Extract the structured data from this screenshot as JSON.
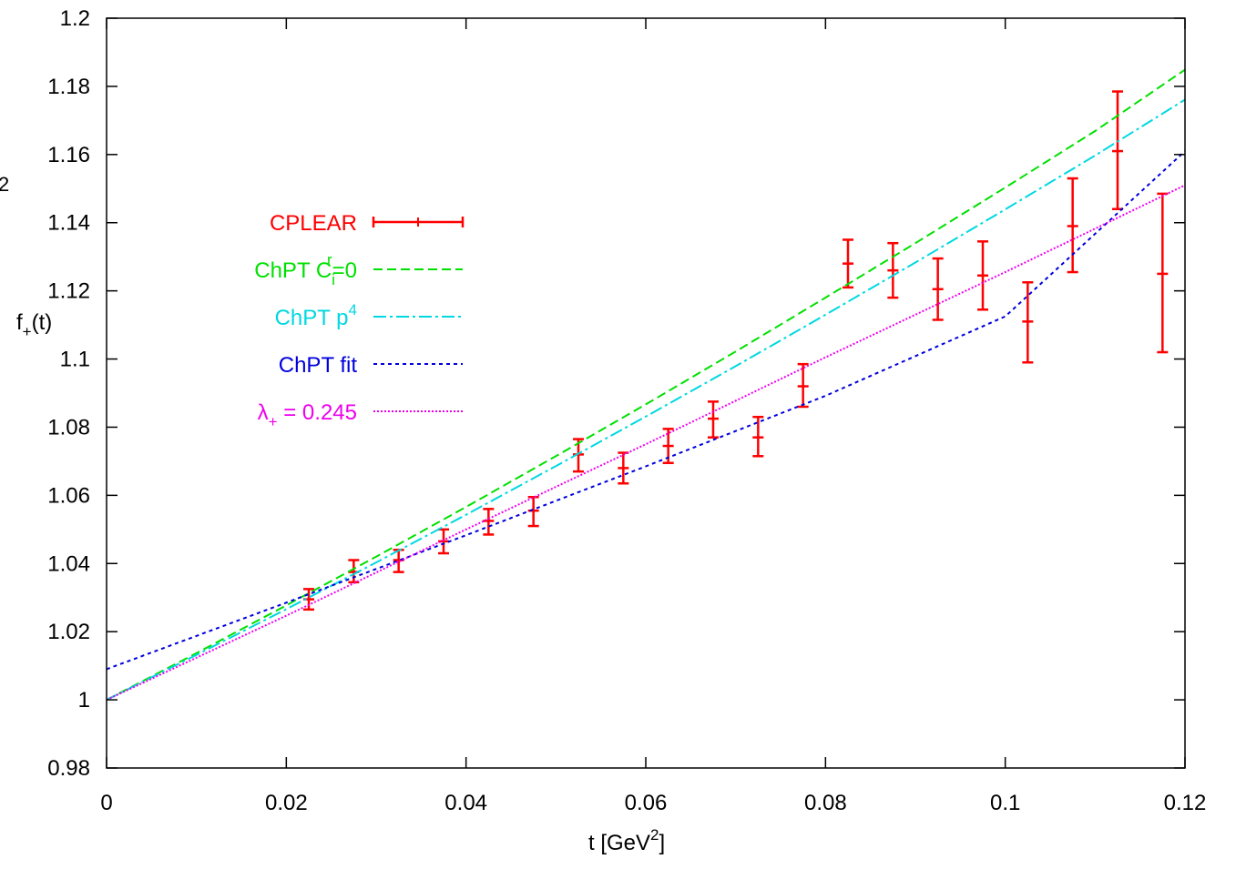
{
  "stray_fragment": "2",
  "chart_data": {
    "type": "line",
    "title": "",
    "xlabel": {
      "main": "t [GeV",
      "sup": "2",
      "tail": "]"
    },
    "ylabel": {
      "main": "f",
      "sub": "+",
      "tail": "(t)"
    },
    "xlim": [
      0,
      0.12
    ],
    "ylim": [
      0.98,
      1.2
    ],
    "x_ticks": [
      0,
      0.02,
      0.04,
      0.06,
      0.08,
      0.1,
      0.12
    ],
    "x_tick_labels": [
      "0",
      "0.02",
      "0.04",
      "0.06",
      "0.08",
      "0.1",
      "0.12"
    ],
    "y_ticks": [
      0.98,
      1.0,
      1.02,
      1.04,
      1.06,
      1.08,
      1.1,
      1.12,
      1.14,
      1.16,
      1.18,
      1.2
    ],
    "y_tick_labels": [
      "0.98",
      "1",
      "1.02",
      "1.04",
      "1.06",
      "1.08",
      "1.1",
      "1.12",
      "1.14",
      "1.16",
      "1.18",
      "1.2"
    ],
    "grid": false,
    "legend_position": "left",
    "series": [
      {
        "name": "CPLEAR",
        "legend": {
          "main": "CPLEAR"
        },
        "kind": "errorbar",
        "color": "#ff0000",
        "points": [
          {
            "x": 0.0225,
            "y": 1.0295,
            "lo": 1.0265,
            "hi": 1.0325
          },
          {
            "x": 0.0275,
            "y": 1.0375,
            "lo": 1.0345,
            "hi": 1.041
          },
          {
            "x": 0.0325,
            "y": 1.041,
            "lo": 1.0375,
            "hi": 1.044
          },
          {
            "x": 0.0375,
            "y": 1.0465,
            "lo": 1.043,
            "hi": 1.05
          },
          {
            "x": 0.0425,
            "y": 1.0525,
            "lo": 1.0485,
            "hi": 1.056
          },
          {
            "x": 0.0475,
            "y": 1.0555,
            "lo": 1.051,
            "hi": 1.0595
          },
          {
            "x": 0.0525,
            "y": 1.072,
            "lo": 1.067,
            "hi": 1.0765
          },
          {
            "x": 0.0575,
            "y": 1.068,
            "lo": 1.0635,
            "hi": 1.0725
          },
          {
            "x": 0.0625,
            "y": 1.0745,
            "lo": 1.0695,
            "hi": 1.0795
          },
          {
            "x": 0.0675,
            "y": 1.0825,
            "lo": 1.077,
            "hi": 1.0875
          },
          {
            "x": 0.0725,
            "y": 1.077,
            "lo": 1.0715,
            "hi": 1.083
          },
          {
            "x": 0.0775,
            "y": 1.092,
            "lo": 1.086,
            "hi": 1.0985
          },
          {
            "x": 0.0825,
            "y": 1.128,
            "lo": 1.121,
            "hi": 1.135
          },
          {
            "x": 0.0875,
            "y": 1.126,
            "lo": 1.118,
            "hi": 1.134
          },
          {
            "x": 0.0925,
            "y": 1.1205,
            "lo": 1.1115,
            "hi": 1.1295
          },
          {
            "x": 0.0975,
            "y": 1.1245,
            "lo": 1.1145,
            "hi": 1.1345
          },
          {
            "x": 0.1025,
            "y": 1.111,
            "lo": 1.099,
            "hi": 1.1225
          },
          {
            "x": 0.1075,
            "y": 1.139,
            "lo": 1.1255,
            "hi": 1.153
          },
          {
            "x": 0.1125,
            "y": 1.161,
            "lo": 1.144,
            "hi": 1.1785
          },
          {
            "x": 0.1175,
            "y": 1.125,
            "lo": 1.102,
            "hi": 1.1485
          }
        ]
      },
      {
        "name": "ChPT Ci=0",
        "legend": {
          "main": "ChPT C",
          "sub": "i",
          "sup": "r",
          "tail": "=0"
        },
        "kind": "line",
        "color": "#00e000",
        "dash": "10,5",
        "x": [
          0,
          0.01,
          0.02,
          0.03,
          0.04,
          0.05,
          0.06,
          0.07,
          0.08,
          0.09,
          0.1,
          0.11,
          0.12
        ],
        "y": [
          1.0,
          1.0137,
          1.0277,
          1.042,
          1.0566,
          1.0715,
          1.0867,
          1.1022,
          1.118,
          1.134,
          1.1503,
          1.1669,
          1.1849
        ]
      },
      {
        "name": "ChPT p4",
        "legend": {
          "main": "ChPT p",
          "sup": "4"
        },
        "kind": "line",
        "color": "#00d8e0",
        "dash": "14,4,3,4",
        "x": [
          0,
          0.01,
          0.02,
          0.03,
          0.04,
          0.05,
          0.06,
          0.07,
          0.08,
          0.09,
          0.1,
          0.11,
          0.12
        ],
        "y": [
          1.0,
          1.0132,
          1.0266,
          1.0403,
          1.0543,
          1.0686,
          1.0831,
          1.0979,
          1.113,
          1.1283,
          1.1439,
          1.1597,
          1.1761
        ]
      },
      {
        "name": "ChPT fit",
        "legend": {
          "main": "ChPT fit"
        },
        "kind": "line",
        "color": "#0000dd",
        "dash": "4,4",
        "x": [
          0,
          0.02,
          0.04,
          0.06,
          0.08,
          0.1,
          0.12
        ],
        "y": [
          1.009,
          1.0285,
          1.0483,
          1.0685,
          1.0892,
          1.1125,
          1.161
        ]
      },
      {
        "name": "λ+ = 0.245",
        "legend": {
          "main": "λ",
          "sub": "+",
          "tail": " = 0.245"
        },
        "kind": "line",
        "color": "#ee00ee",
        "dash": "2,2",
        "x": [
          0,
          0.02,
          0.04,
          0.06,
          0.08,
          0.1,
          0.12
        ],
        "y": [
          1.0,
          1.0247,
          1.05,
          1.075,
          1.1005,
          1.1255,
          1.151
        ]
      }
    ]
  }
}
